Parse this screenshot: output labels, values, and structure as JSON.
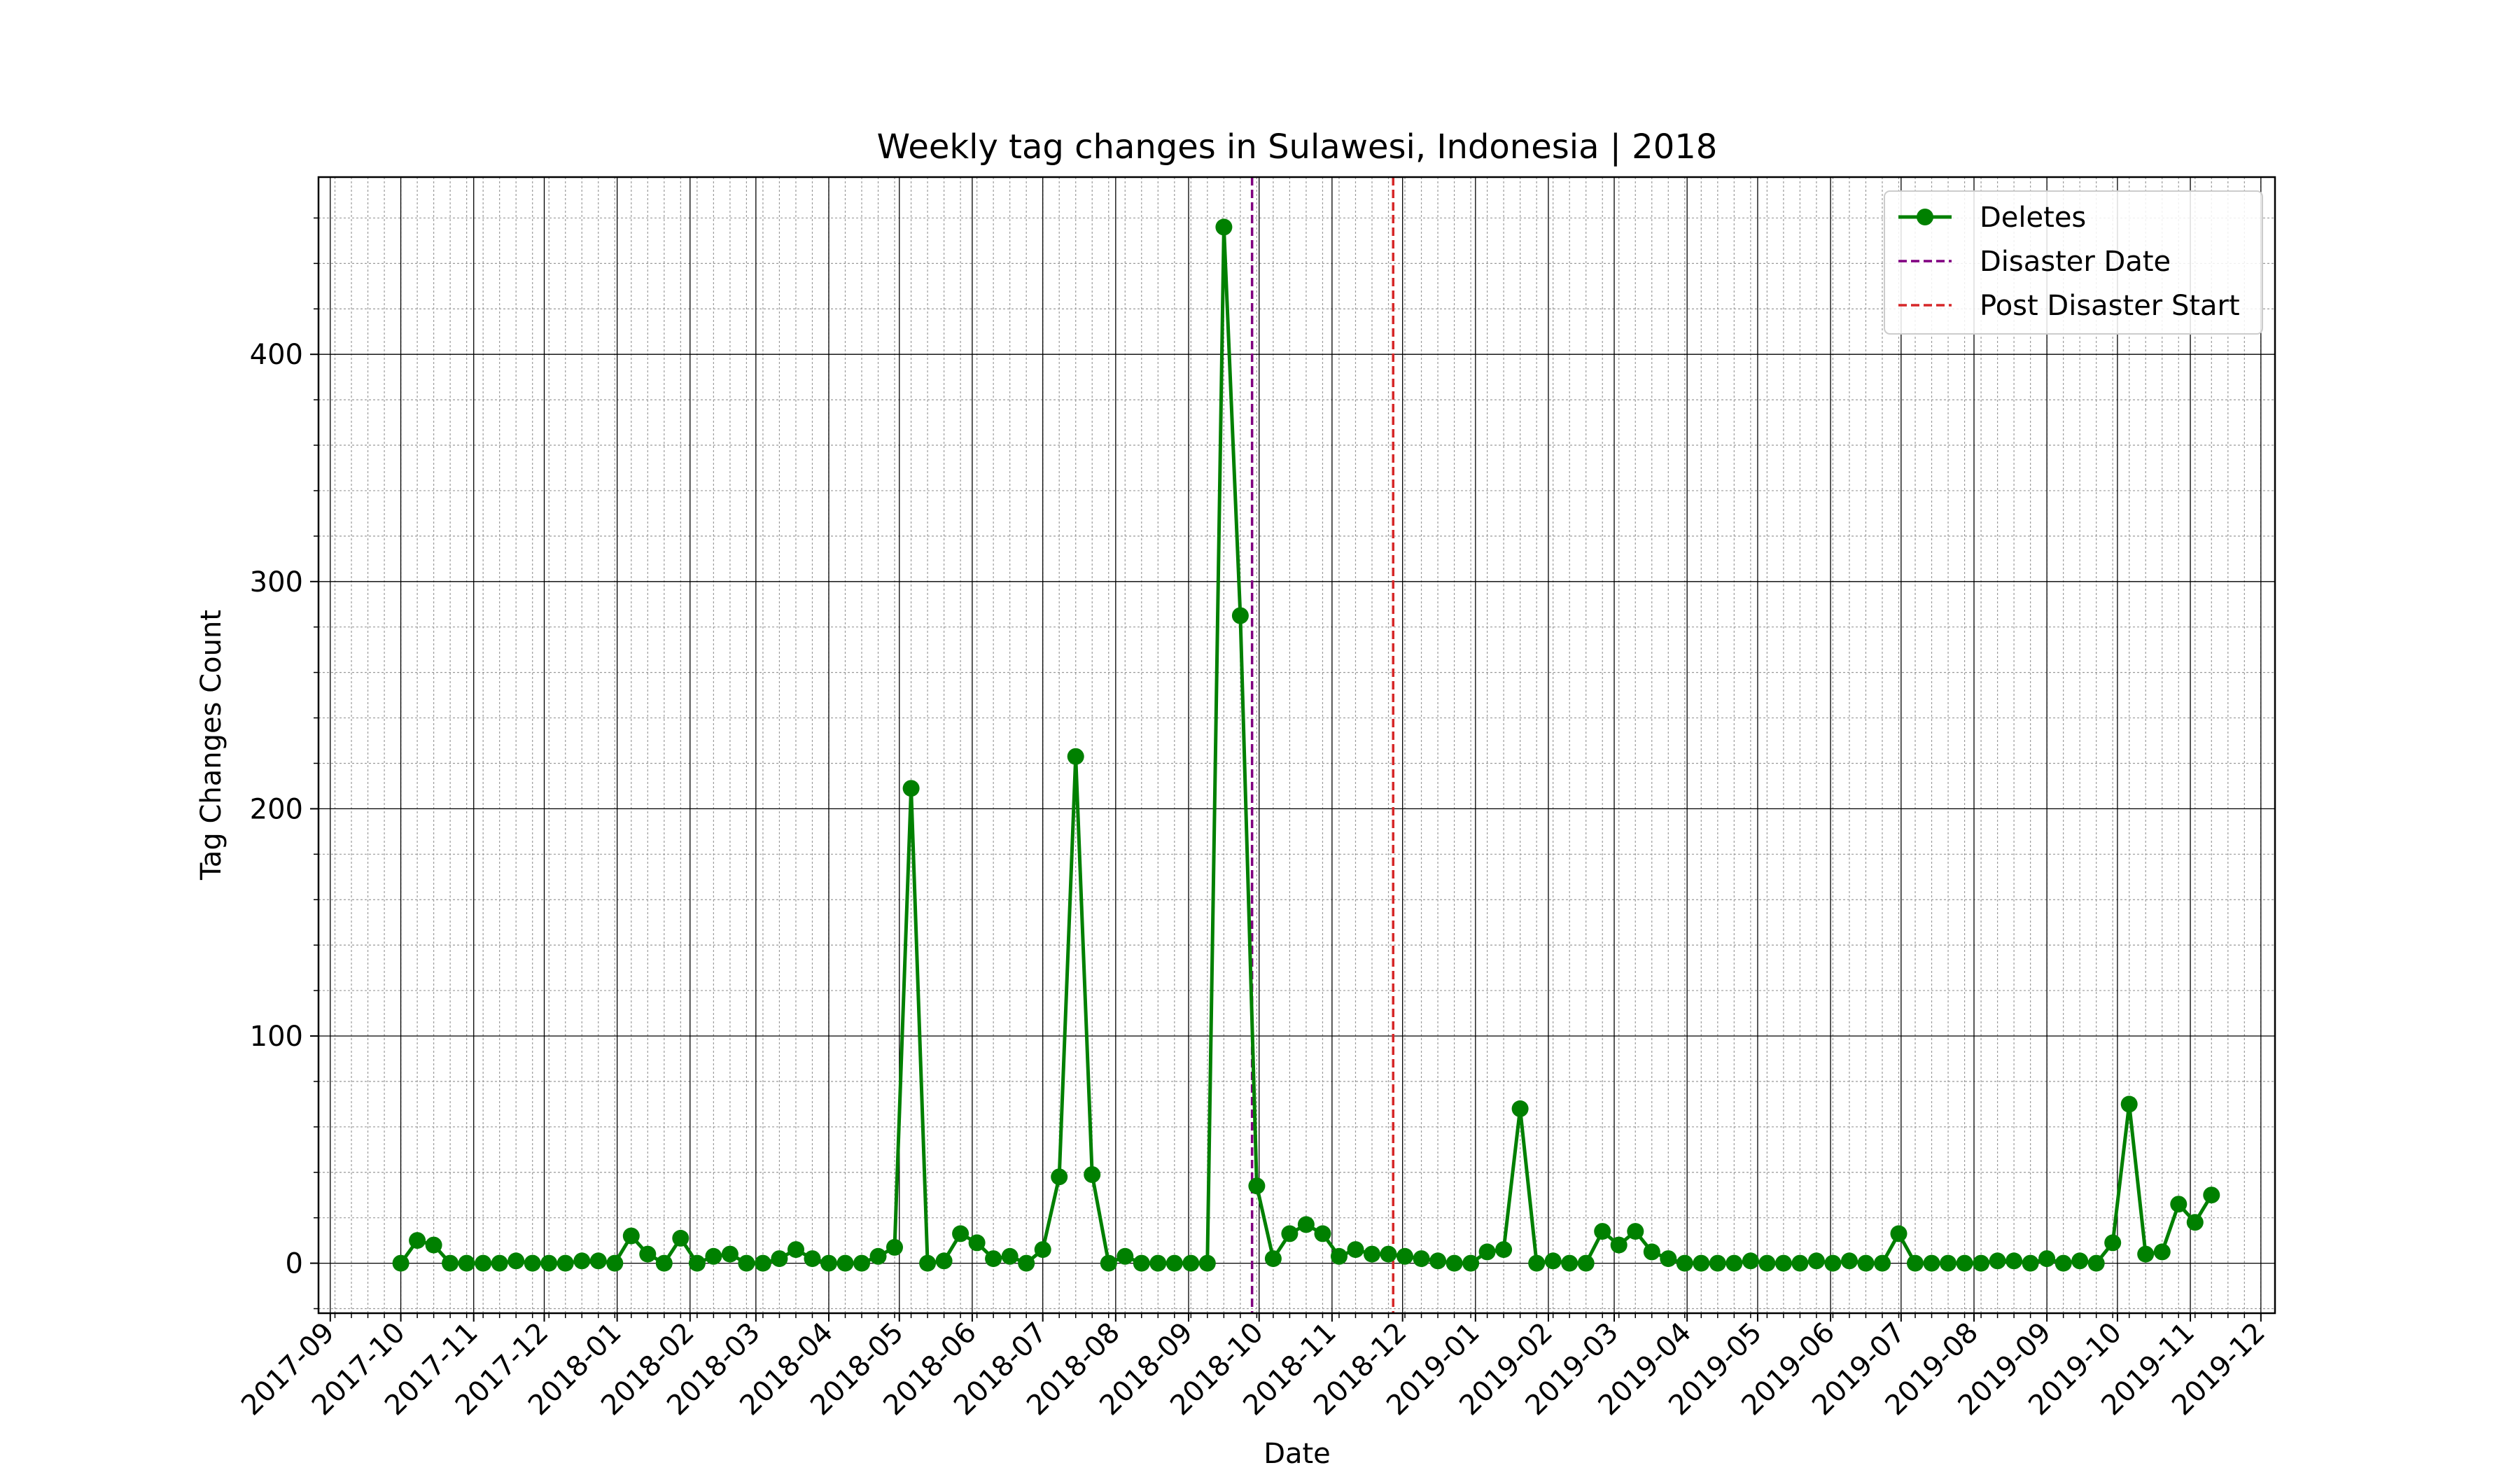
{
  "chart_data": {
    "type": "line",
    "title": "Weekly tag changes in Sulawesi, Indonesia | 2018",
    "xlabel": "Date",
    "ylabel": "Tag Changes Count",
    "xlim": [
      "2017-08-27",
      "2019-12-07"
    ],
    "ylim": [
      -22,
      478
    ],
    "grid": true,
    "legend_position": "top-right",
    "x_ticks": [
      "2017-09",
      "2017-10",
      "2017-11",
      "2017-12",
      "2018-01",
      "2018-02",
      "2018-03",
      "2018-04",
      "2018-05",
      "2018-06",
      "2018-07",
      "2018-08",
      "2018-09",
      "2018-10",
      "2018-11",
      "2018-12",
      "2019-01",
      "2019-02",
      "2019-03",
      "2019-04",
      "2019-05",
      "2019-06",
      "2019-07",
      "2019-08",
      "2019-09",
      "2019-10",
      "2019-11",
      "2019-12"
    ],
    "y_ticks": [
      "0",
      "100",
      "200",
      "300",
      "400"
    ],
    "series": [
      {
        "name": "Deletes",
        "color": "#008000",
        "marker": "circle",
        "x_start": "2017-10-01",
        "x_step_days": 7,
        "values": [
          0,
          10,
          8,
          0,
          0,
          0,
          0,
          1,
          0,
          0,
          0,
          1,
          1,
          0,
          12,
          4,
          0,
          11,
          0,
          3,
          4,
          0,
          0,
          2,
          6,
          2,
          0,
          0,
          0,
          3,
          7,
          209,
          0,
          1,
          13,
          9,
          2,
          3,
          0,
          6,
          38,
          223,
          39,
          0,
          3,
          0,
          0,
          0,
          0,
          0,
          456,
          285,
          34,
          2,
          13,
          17,
          13,
          3,
          6,
          4,
          4,
          3,
          2,
          1,
          0,
          0,
          5,
          6,
          68,
          0,
          1,
          0,
          0,
          14,
          8,
          14,
          5,
          2,
          0,
          0,
          0,
          0,
          1,
          0,
          0,
          0,
          1,
          0,
          1,
          0,
          0,
          13,
          0,
          0,
          0,
          0,
          0,
          1,
          1,
          0,
          2,
          0,
          1,
          0,
          9,
          70,
          4,
          5,
          26,
          18,
          30
        ]
      }
    ],
    "reference_lines": [
      {
        "name": "Disaster Date",
        "x": "2018-09-28",
        "color": "#800080",
        "style": "dashed"
      },
      {
        "name": "Post Disaster Start",
        "x": "2018-11-27",
        "color": "#d62728",
        "style": "dashed"
      }
    ]
  }
}
